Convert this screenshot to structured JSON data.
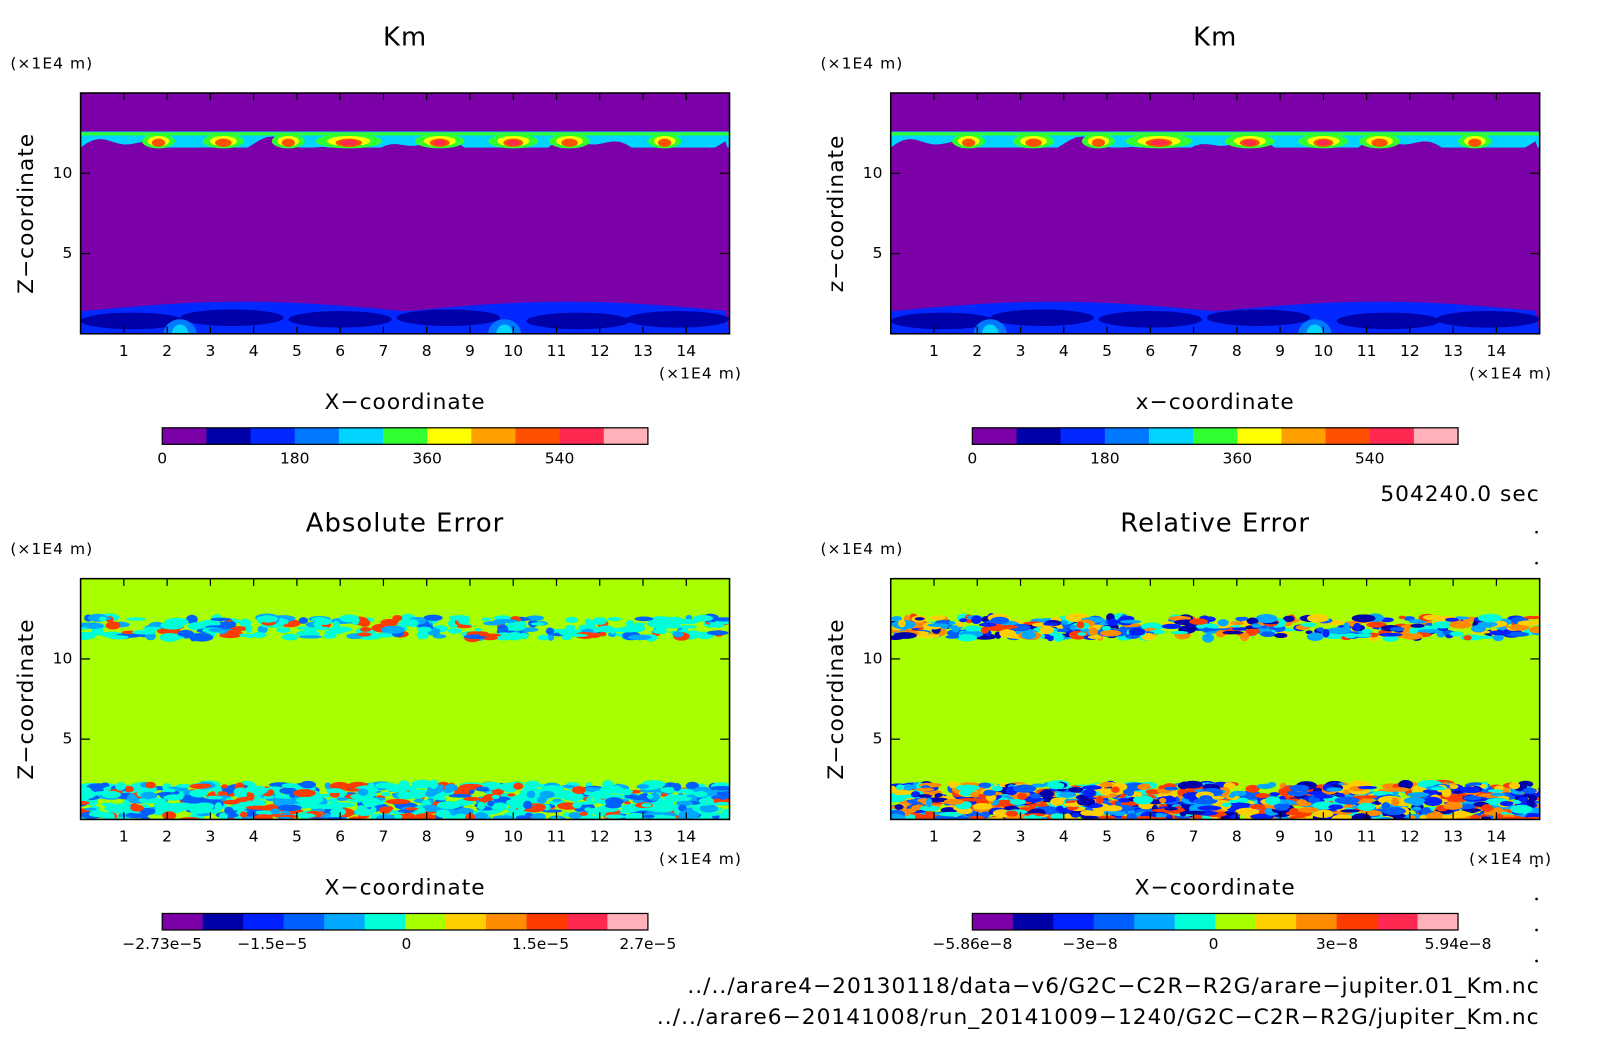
{
  "chart_data": [
    {
      "type": "contour",
      "title": "Km",
      "xlabel": "X−coordinate",
      "ylabel": "Z−coordinate",
      "xunit": "(×1E4 m)",
      "yunit": "(×1E4 m)",
      "field_color": "#7c00a8",
      "xlim": [
        0,
        15
      ],
      "ylim": [
        0,
        15
      ],
      "xticks": [
        1,
        2,
        3,
        4,
        5,
        6,
        7,
        8,
        9,
        10,
        11,
        12,
        13,
        14
      ],
      "yticks": [
        5,
        10
      ],
      "colorbar": {
        "clim": [
          0,
          660
        ],
        "ticks": [
          0,
          180,
          360,
          540
        ],
        "colors": [
          "#7c00a8",
          "#0000a8",
          "#0028ff",
          "#0078ff",
          "#00d4ff",
          "#30ff30",
          "#ffff00",
          "#ffa000",
          "#ff5000",
          "#ff2850",
          "#ffb0b8"
        ]
      }
    },
    {
      "type": "contour",
      "title": "Km",
      "xlabel": "x−coordinate",
      "ylabel": "z−coordinate",
      "xunit": "(×1E4 m)",
      "yunit": "(×1E4 m)",
      "field_color": "#7c00a8",
      "xlim": [
        0,
        15
      ],
      "ylim": [
        0,
        15
      ],
      "xticks": [
        1,
        2,
        3,
        4,
        5,
        6,
        7,
        8,
        9,
        10,
        11,
        12,
        13,
        14
      ],
      "yticks": [
        5,
        10
      ],
      "colorbar": {
        "clim": [
          0,
          660
        ],
        "ticks": [
          0,
          180,
          360,
          540
        ],
        "colors": [
          "#7c00a8",
          "#0000a8",
          "#0028ff",
          "#0078ff",
          "#00d4ff",
          "#30ff30",
          "#ffff00",
          "#ffa000",
          "#ff5000",
          "#ff2850",
          "#ffb0b8"
        ]
      }
    },
    {
      "type": "contour",
      "title": "Absolute Error",
      "xlabel": "X−coordinate",
      "ylabel": "Z−coordinate",
      "xunit": "(×1E4 m)",
      "yunit": "(×1E4 m)",
      "field_color": "#a8ff00",
      "xlim": [
        0,
        15
      ],
      "ylim": [
        0,
        15
      ],
      "xticks": [
        1,
        2,
        3,
        4,
        5,
        6,
        7,
        8,
        9,
        10,
        11,
        12,
        13,
        14
      ],
      "yticks": [
        5,
        10
      ],
      "colorbar": {
        "clim": [
          -2.73e-05,
          2.7e-05
        ],
        "ticks": [
          {
            "value": -2.73e-05,
            "label": "−2.73e−5"
          },
          {
            "value": -1.5e-05,
            "label": "−1.5e−5"
          },
          0,
          {
            "value": 1.5e-05,
            "label": "1.5e−5"
          },
          {
            "value": 2.7e-05,
            "label": "2.7e−5"
          }
        ],
        "colors": [
          "#7c00a8",
          "#0000a8",
          "#0020ff",
          "#0060ff",
          "#00a8ff",
          "#00ffd8",
          "#a8ff00",
          "#ffd000",
          "#ff8c00",
          "#ff3c00",
          "#ff2850",
          "#ffb0b8"
        ]
      }
    },
    {
      "type": "contour",
      "title": "Relative Error",
      "xlabel": "X−coordinate",
      "ylabel": "Z−coordinate",
      "xunit": "(×1E4 m)",
      "yunit": "(×1E4 m)",
      "field_color": "#a8ff00",
      "xlim": [
        0,
        15
      ],
      "ylim": [
        0,
        15
      ],
      "xticks": [
        1,
        2,
        3,
        4,
        5,
        6,
        7,
        8,
        9,
        10,
        11,
        12,
        13,
        14
      ],
      "yticks": [
        5,
        10
      ],
      "colorbar": {
        "clim": [
          -5.86e-08,
          5.94e-08
        ],
        "ticks": [
          {
            "value": -5.86e-08,
            "label": "−5.86e−8"
          },
          {
            "value": -3e-08,
            "label": "−3e−8"
          },
          0,
          {
            "value": 3e-08,
            "label": "3e−8"
          },
          {
            "value": 5.94e-08,
            "label": "5.94e−8"
          }
        ],
        "colors": [
          "#7c00a8",
          "#0000a8",
          "#0020ff",
          "#0060ff",
          "#00a8ff",
          "#00ffd8",
          "#a8ff00",
          "#ffd000",
          "#ff8c00",
          "#ff3c00",
          "#ff2850",
          "#ffb0b8"
        ]
      }
    }
  ],
  "time": "504240.0 sec",
  "files": [
    "../../arare4−20130118/data−v6/G2C−C2R−R2G/arare−jupiter.01_Km.nc",
    "../../arare6−20141008/run_20141009−1240/G2C−C2R−R2G/jupiter_Km.nc"
  ]
}
